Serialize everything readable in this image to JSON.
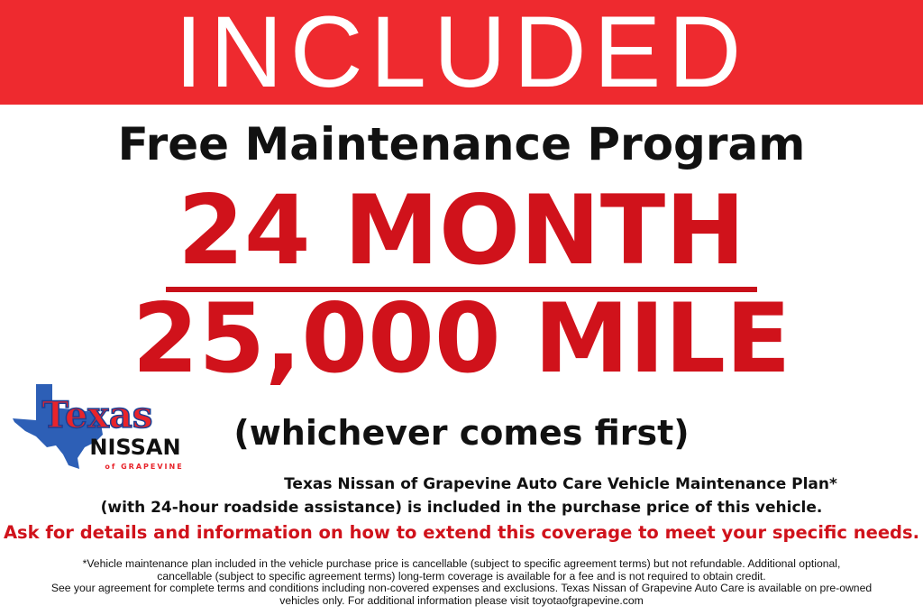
{
  "banner": {
    "text": "INCLUDED",
    "color": "#ee2a2f"
  },
  "headline": "Free Maintenance Program",
  "term_months": "24 MONTH",
  "term_miles": "25,000 MILE",
  "qualifier": "(whichever comes first)",
  "plan_line_1": "Texas Nissan of Grapevine Auto Care Vehicle Maintenance Plan*",
  "plan_line_2": "(with 24-hour roadside assistance) is included in the purchase price of this vehicle.",
  "call_to_action": "Ask for details and information on how to extend this coverage to meet your specific needs.",
  "fine_print": [
    "*Vehicle maintenance plan included in the vehicle purchase price is cancellable (subject to specific agreement terms) but not refundable. Additional optional,",
    "cancellable (subject to specific agreement terms) long-term coverage is available for a fee and is not required to obtain credit.",
    "See your agreement for complete terms and conditions including non-covered expenses and exclusions. Texas Nissan of Grapevine Auto Care is available on pre-owned",
    "vehicles only. For additional information please visit toyotaofgrapevine.com"
  ],
  "logo": {
    "line1": "Texas",
    "line2": "NISSAN",
    "line3": "of GRAPEVINE"
  },
  "colors": {
    "accent_red": "#d0121b",
    "texas_blue": "#2d5fb6"
  }
}
